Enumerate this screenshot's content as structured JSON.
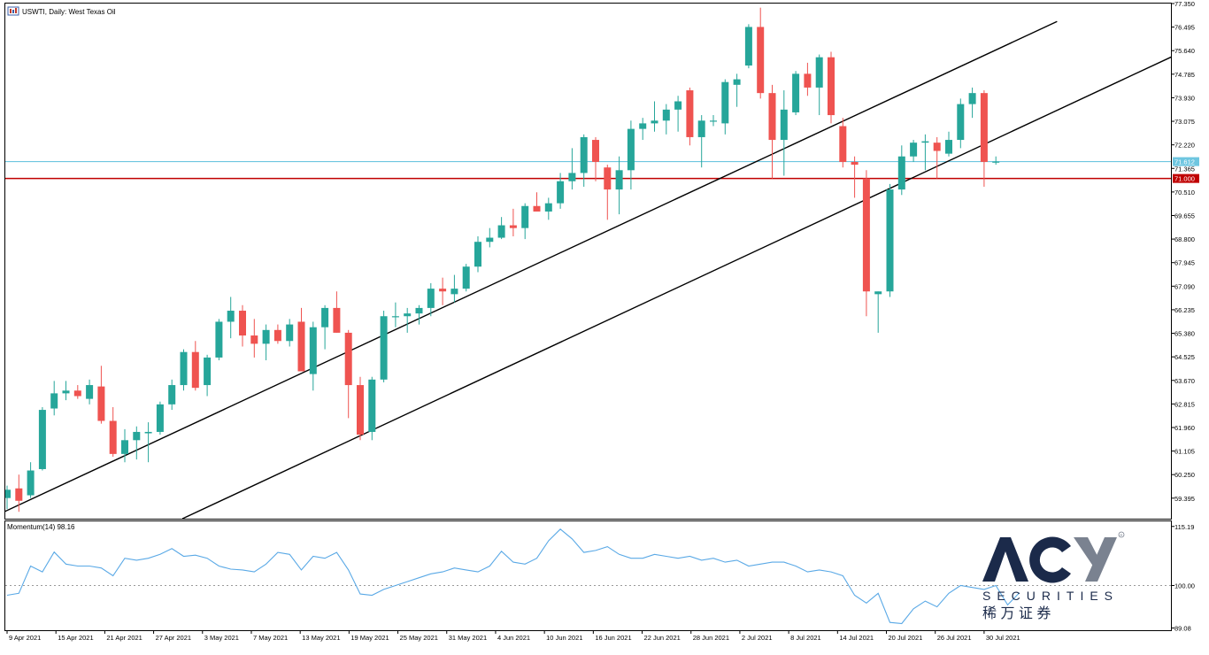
{
  "chart_title": "USWTI, Daily: West Texas Oil",
  "indicator_label": "Momentum(14) 98.16",
  "logo": {
    "brand": "ACY",
    "subtitle": "SECURITIES",
    "chinese": "稀 万 证 券",
    "brand_color": "#1b2a4a",
    "accent_color": "#6f7785"
  },
  "colors": {
    "bull": "#26a69a",
    "bear": "#ef5350",
    "momentum_line": "#5aa9e6",
    "support_line": "#c00000",
    "current_price_line": "#6ec6e0",
    "channel_lines": "#000000",
    "axis_color": "#000000"
  },
  "chart_data": [
    {
      "type": "candlestick",
      "title": "USWTI, Daily: West Texas Oil",
      "y_ticks": [
        "77.350",
        "76.495",
        "75.640",
        "74.785",
        "73.930",
        "73.075",
        "72.220",
        "71.365",
        "70.510",
        "69.655",
        "68.800",
        "67.945",
        "67.090",
        "66.235",
        "65.380",
        "64.525",
        "63.670",
        "62.815",
        "61.960",
        "61.105",
        "60.250",
        "59.395"
      ],
      "ylim": [
        58.65,
        77.35
      ],
      "x_labels": [
        "9 Apr 2021",
        "15 Apr 2021",
        "21 Apr 2021",
        "27 Apr 2021",
        "3 May 2021",
        "7 May 2021",
        "13 May 2021",
        "19 May 2021",
        "25 May 2021",
        "31 May 2021",
        "4 Jun 2021",
        "10 Jun 2021",
        "16 Jun 2021",
        "22 Jun 2021",
        "28 Jun 2021",
        "2 Jul 2021",
        "8 Jul 2021",
        "14 Jul 2021",
        "20 Jul 2021",
        "26 Jul 2021",
        "30 Jul 2021"
      ],
      "price_labels": [
        {
          "text": "71.612",
          "value": 71.612,
          "kind": "current"
        },
        {
          "text": "71.000",
          "value": 71.0,
          "kind": "support"
        }
      ],
      "horizontal_lines": [
        {
          "name": "current-price",
          "value": 71.612
        },
        {
          "name": "support",
          "value": 71.0
        }
      ],
      "trend_lines": [
        {
          "name": "upper-channel",
          "x1": -1.5,
          "y1": 58.65,
          "x2": 89.2,
          "y2": 76.7
        },
        {
          "name": "lower-channel",
          "x1": 14.9,
          "y1": 58.65,
          "x2": 99.6,
          "y2": 75.55
        }
      ],
      "candles": [
        [
          59.4,
          59.85,
          59.0,
          59.7
        ],
        [
          59.75,
          60.25,
          58.9,
          59.3
        ],
        [
          59.5,
          60.7,
          59.4,
          60.4
        ],
        [
          60.45,
          62.7,
          60.4,
          62.6
        ],
        [
          62.65,
          63.65,
          62.4,
          63.2
        ],
        [
          63.2,
          63.65,
          62.95,
          63.3
        ],
        [
          63.3,
          63.5,
          63.0,
          63.1
        ],
        [
          63.0,
          63.7,
          62.8,
          63.5
        ],
        [
          63.45,
          64.2,
          62.1,
          62.2
        ],
        [
          62.2,
          62.7,
          60.9,
          61.0
        ],
        [
          61.0,
          61.9,
          60.7,
          61.5
        ],
        [
          61.5,
          62.0,
          60.8,
          61.8
        ],
        [
          61.75,
          62.15,
          60.7,
          61.8
        ],
        [
          61.8,
          62.9,
          61.7,
          62.8
        ],
        [
          62.8,
          63.7,
          62.6,
          63.5
        ],
        [
          63.5,
          64.8,
          63.3,
          64.7
        ],
        [
          64.7,
          65.1,
          63.3,
          63.4
        ],
        [
          63.5,
          64.6,
          63.1,
          64.5
        ],
        [
          64.5,
          65.9,
          64.4,
          65.8
        ],
        [
          65.8,
          66.7,
          65.2,
          66.2
        ],
        [
          66.2,
          66.4,
          64.9,
          65.3
        ],
        [
          65.3,
          65.9,
          64.5,
          65.0
        ],
        [
          65.0,
          65.7,
          64.4,
          65.5
        ],
        [
          65.5,
          65.7,
          65.0,
          65.1
        ],
        [
          65.1,
          65.9,
          64.9,
          65.7
        ],
        [
          65.8,
          66.3,
          64.0,
          64.0
        ],
        [
          63.9,
          65.8,
          63.3,
          65.6
        ],
        [
          65.6,
          66.4,
          64.8,
          66.3
        ],
        [
          66.3,
          66.9,
          65.4,
          65.4
        ],
        [
          65.4,
          65.5,
          62.3,
          63.5
        ],
        [
          63.5,
          63.8,
          61.5,
          61.7
        ],
        [
          61.8,
          63.8,
          61.5,
          63.7
        ],
        [
          63.7,
          66.2,
          63.6,
          66.0
        ],
        [
          66.0,
          66.5,
          65.6,
          66.0
        ],
        [
          66.0,
          66.3,
          65.4,
          66.1
        ],
        [
          66.1,
          66.4,
          65.7,
          66.3
        ],
        [
          66.3,
          67.2,
          66.0,
          67.0
        ],
        [
          67.0,
          67.4,
          66.4,
          66.9
        ],
        [
          66.8,
          67.5,
          66.5,
          67.0
        ],
        [
          67.0,
          67.9,
          66.9,
          67.8
        ],
        [
          67.8,
          68.9,
          67.6,
          68.7
        ],
        [
          68.7,
          69.2,
          68.5,
          68.85
        ],
        [
          68.85,
          69.6,
          68.8,
          69.3
        ],
        [
          69.3,
          69.9,
          68.9,
          69.2
        ],
        [
          69.2,
          70.1,
          68.8,
          70.0
        ],
        [
          70.0,
          70.5,
          69.8,
          69.8
        ],
        [
          69.8,
          70.3,
          69.5,
          70.1
        ],
        [
          70.1,
          71.2,
          69.9,
          70.9
        ],
        [
          70.9,
          72.1,
          70.6,
          71.2
        ],
        [
          71.2,
          72.6,
          70.7,
          72.5
        ],
        [
          72.4,
          72.5,
          70.9,
          71.6
        ],
        [
          71.4,
          71.5,
          69.5,
          70.6
        ],
        [
          70.6,
          71.8,
          69.7,
          71.3
        ],
        [
          71.3,
          73.1,
          70.6,
          72.8
        ],
        [
          72.8,
          73.2,
          72.4,
          73.0
        ],
        [
          73.0,
          73.8,
          72.7,
          73.1
        ],
        [
          73.1,
          73.7,
          72.6,
          73.5
        ],
        [
          73.5,
          74.0,
          72.7,
          73.8
        ],
        [
          74.2,
          74.3,
          72.2,
          72.5
        ],
        [
          72.5,
          73.3,
          71.4,
          73.1
        ],
        [
          73.1,
          73.3,
          72.9,
          73.1
        ],
        [
          73.0,
          74.6,
          72.6,
          74.5
        ],
        [
          74.4,
          74.8,
          73.6,
          74.6
        ],
        [
          75.1,
          76.6,
          75.0,
          76.5
        ],
        [
          76.5,
          77.2,
          73.9,
          74.1
        ],
        [
          74.1,
          74.4,
          71.0,
          72.4
        ],
        [
          72.4,
          74.2,
          71.1,
          73.5
        ],
        [
          73.4,
          74.9,
          73.3,
          74.8
        ],
        [
          74.8,
          75.2,
          74.0,
          74.3
        ],
        [
          74.3,
          75.5,
          73.3,
          75.4
        ],
        [
          75.4,
          75.6,
          73.0,
          73.3
        ],
        [
          72.9,
          73.2,
          71.4,
          71.6
        ],
        [
          71.6,
          71.8,
          70.3,
          71.5
        ],
        [
          71.0,
          71.3,
          66.0,
          66.9
        ],
        [
          66.8,
          66.9,
          65.4,
          66.9
        ],
        [
          66.9,
          70.8,
          66.7,
          70.6
        ],
        [
          70.6,
          72.2,
          70.4,
          71.8
        ],
        [
          71.8,
          72.4,
          71.6,
          72.3
        ],
        [
          72.3,
          72.6,
          71.3,
          72.35
        ],
        [
          72.3,
          72.5,
          71.0,
          72.0
        ],
        [
          71.9,
          72.7,
          71.8,
          72.4
        ],
        [
          72.4,
          73.9,
          72.1,
          73.7
        ],
        [
          73.7,
          74.3,
          73.2,
          74.1
        ],
        [
          74.1,
          74.2,
          70.7,
          71.6
        ],
        [
          71.6,
          71.8,
          71.5,
          71.612
        ]
      ]
    },
    {
      "type": "line",
      "name": "Momentum(14) 98.16",
      "y_ticks": [
        "115.19",
        "100.00",
        "89.08"
      ],
      "ylim": [
        88.5,
        116.5
      ],
      "reference_level": 100.0,
      "values": [
        97.5,
        98.0,
        105.0,
        103.5,
        108.6,
        105.5,
        105.0,
        105.0,
        104.5,
        102.5,
        107.0,
        106.5,
        107.0,
        108.0,
        109.5,
        107.5,
        107.8,
        107.0,
        105.0,
        104.2,
        104.0,
        103.5,
        105.5,
        108.5,
        108.0,
        104.0,
        107.5,
        107.0,
        108.5,
        104.0,
        97.8,
        97.5,
        99.0,
        100.0,
        101.0,
        102.0,
        103.0,
        103.5,
        104.5,
        104.0,
        103.5,
        105.0,
        108.8,
        106.0,
        105.5,
        107.0,
        111.5,
        114.5,
        112.0,
        108.5,
        109.0,
        110.0,
        108.0,
        107.0,
        107.0,
        108.0,
        107.5,
        107.0,
        107.5,
        106.5,
        107.0,
        106.0,
        106.5,
        105.0,
        105.5,
        106.0,
        106.0,
        105.0,
        103.5,
        104.0,
        103.5,
        102.5,
        97.5,
        95.5,
        98.0,
        90.5,
        90.2,
        94.0,
        96.0,
        94.5,
        98.0,
        100.0,
        99.5,
        99.0,
        100.0,
        95.0,
        98.16
      ]
    }
  ]
}
